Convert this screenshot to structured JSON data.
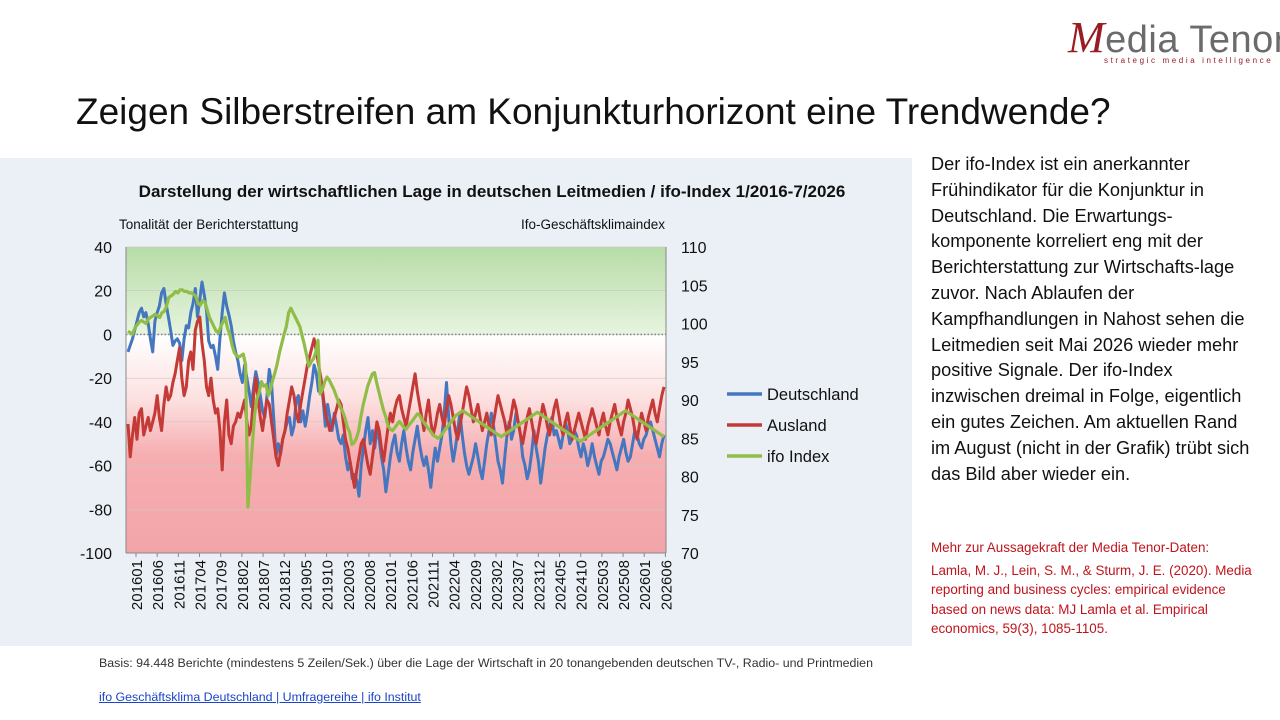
{
  "logo": {
    "brand_m": "M",
    "brand_rest": "edia Tenor",
    "tagline": "strategic media intelligence"
  },
  "title": "Zeigen Silberstreifen am Konjunkturhorizont eine Trendwende?",
  "sidebar": {
    "text": "Der ifo-Index ist ein anerkannter Frühindikator für die Konjunktur in Deutschland. Die Erwartungs-komponente korreliert eng mit der Berichterstattung zur Wirtschafts-lage zuvor. Nach Ablaufen der Kampfhandlungen in Nahost sehen die Leitmedien seit Mai 2026 wieder mehr positive Signale. Der ifo-Index inzwischen dreimal in Folge, eigentlich ein gutes Zeichen. Am aktuellen Rand im August (nicht in der Grafik) trübt sich das Bild aber wieder ein.",
    "ref_title": "Mehr zur Aussagekraft der Media Tenor-Daten:",
    "ref_body": "Lamla, M. J., Lein, S. M., & Sturm, J. E. (2020). Media reporting and business cycles: empirical evidence based on news data: MJ Lamla et al. Empirical economics, 59(3), 1085-1105."
  },
  "footer": {
    "basis": "Basis: 94.448 Berichte (mindestens 5 Zeilen/Sek.) über die Lage der Wirtschaft in 20 tonangebenden deutschen TV-, Radio- und Printmedien",
    "link": "ifo Geschäftsklima Deutschland | Umfragereihe | ifo Institut"
  },
  "chart_data": {
    "type": "line",
    "title": "Darstellung der wirtschaftlichen Lage in deutschen Leitmedien / ifo-Index 1/2016-7/2026",
    "ylabel_left": "Tonalität der Berichterstattung",
    "ylabel_right": "Ifo-Geschäftsklimaindex",
    "y_left": {
      "min": -100,
      "max": 40,
      "ticks": [
        40,
        20,
        0,
        -20,
        -40,
        -60,
        -80,
        -100
      ]
    },
    "y_right": {
      "min": 70,
      "max": 110,
      "ticks": [
        110,
        105,
        100,
        95,
        90,
        85,
        80,
        75,
        70
      ]
    },
    "x_tick_labels": [
      "201601",
      "201606",
      "201611",
      "201704",
      "201709",
      "201802",
      "201807",
      "201812",
      "201905",
      "201910",
      "202003",
      "202008",
      "202101",
      "202106",
      "202111",
      "202204",
      "202209",
      "202302",
      "202307",
      "202312",
      "202405",
      "202410",
      "202503",
      "202508",
      "202601",
      "202606"
    ],
    "legend_position": "right",
    "background_bands": "green above 0, white to red below 0",
    "colors": {
      "Deutschland": "#4477bf",
      "Ausland": "#c43a36",
      "ifo Index": "#90bd47"
    },
    "series": [
      {
        "name": "Deutschland",
        "axis": "left",
        "values": [
          -8,
          -5,
          -2,
          2,
          6,
          10,
          12,
          8,
          10,
          5,
          -2,
          -8,
          6,
          10,
          13,
          19,
          21,
          14,
          8,
          2,
          -5,
          -3,
          -2,
          -4,
          -12,
          -2,
          4,
          3,
          10,
          14,
          21,
          8,
          16,
          24,
          18,
          11,
          -3,
          -6,
          -5,
          -10,
          -16,
          -2,
          10,
          19,
          13,
          9,
          4,
          -3,
          -8,
          -12,
          -18,
          -22,
          -14,
          -20,
          -26,
          -33,
          -24,
          -17,
          -22,
          -28,
          -35,
          -38,
          -28,
          -16,
          -22,
          -39,
          -56,
          -50,
          -55,
          -48,
          -44,
          -40,
          -38,
          -46,
          -42,
          -30,
          -28,
          -40,
          -35,
          -42,
          -36,
          -28,
          -22,
          -14,
          -18,
          -26,
          -20,
          -30,
          -42,
          -32,
          -38,
          -44,
          -36,
          -42,
          -48,
          -50,
          -46,
          -56,
          -62,
          -58,
          -66,
          -64,
          -67,
          -74,
          -60,
          -52,
          -44,
          -38,
          -50,
          -44,
          -52,
          -44,
          -48,
          -56,
          -62,
          -72,
          -64,
          -56,
          -50,
          -46,
          -54,
          -58,
          -50,
          -44,
          -52,
          -58,
          -62,
          -54,
          -48,
          -42,
          -50,
          -56,
          -60,
          -56,
          -62,
          -70,
          -60,
          -52,
          -58,
          -52,
          -46,
          -36,
          -22,
          -38,
          -50,
          -58,
          -52,
          -44,
          -36,
          -46,
          -54,
          -60,
          -64,
          -60,
          -56,
          -50,
          -56,
          -62,
          -66,
          -58,
          -50,
          -44,
          -36,
          -42,
          -50,
          -58,
          -62,
          -68,
          -56,
          -46,
          -40,
          -48,
          -44,
          -36,
          -40,
          -46,
          -56,
          -60,
          -66,
          -62,
          -54,
          -44,
          -52,
          -58,
          -68,
          -60,
          -52,
          -46,
          -42,
          -38,
          -46,
          -44,
          -48,
          -52,
          -46,
          -40,
          -44,
          -50,
          -48,
          -44,
          -46,
          -52,
          -56,
          -50,
          -54,
          -60,
          -56,
          -50,
          -56,
          -60,
          -64,
          -58,
          -56,
          -52,
          -48,
          -50,
          -54,
          -58,
          -62,
          -56,
          -52,
          -48,
          -54,
          -58,
          -56,
          -50,
          -44,
          -46,
          -50,
          -52,
          -48,
          -46,
          -42,
          -40,
          -44,
          -48,
          -52,
          -56,
          -50,
          -46
        ]
      },
      {
        "name": "Ausland",
        "axis": "left",
        "values": [
          -41,
          -56,
          -46,
          -38,
          -48,
          -36,
          -34,
          -46,
          -42,
          -38,
          -44,
          -40,
          -36,
          -28,
          -38,
          -44,
          -32,
          -24,
          -30,
          -28,
          -22,
          -18,
          -12,
          -6,
          -20,
          -28,
          -24,
          -12,
          -8,
          -16,
          2,
          6,
          8,
          -4,
          -12,
          -24,
          -28,
          -20,
          -30,
          -36,
          -34,
          -44,
          -62,
          -40,
          -30,
          -46,
          -50,
          -42,
          -40,
          -36,
          -38,
          -34,
          -30,
          -40,
          -46,
          -42,
          -28,
          -20,
          -30,
          -38,
          -44,
          -36,
          -30,
          -32,
          -40,
          -48,
          -56,
          -60,
          -54,
          -48,
          -44,
          -36,
          -30,
          -24,
          -28,
          -36,
          -40,
          -32,
          -26,
          -20,
          -14,
          -10,
          -6,
          -2,
          -8,
          -14,
          -20,
          -28,
          -36,
          -40,
          -44,
          -42,
          -38,
          -34,
          -30,
          -32,
          -40,
          -48,
          -52,
          -58,
          -64,
          -70,
          -62,
          -56,
          -50,
          -48,
          -54,
          -60,
          -64,
          -56,
          -48,
          -40,
          -44,
          -52,
          -58,
          -50,
          -42,
          -36,
          -40,
          -34,
          -30,
          -28,
          -34,
          -38,
          -42,
          -36,
          -30,
          -24,
          -18,
          -26,
          -32,
          -38,
          -44,
          -36,
          -30,
          -40,
          -46,
          -42,
          -36,
          -32,
          -38,
          -42,
          -34,
          -28,
          -32,
          -38,
          -44,
          -48,
          -42,
          -36,
          -30,
          -24,
          -28,
          -34,
          -40,
          -36,
          -32,
          -38,
          -44,
          -40,
          -36,
          -42,
          -46,
          -40,
          -34,
          -28,
          -32,
          -36,
          -40,
          -46,
          -42,
          -36,
          -30,
          -34,
          -40,
          -46,
          -50,
          -44,
          -38,
          -34,
          -40,
          -46,
          -50,
          -44,
          -38,
          -32,
          -36,
          -42,
          -46,
          -40,
          -34,
          -30,
          -36,
          -42,
          -46,
          -40,
          -36,
          -42,
          -48,
          -44,
          -40,
          -36,
          -40,
          -44,
          -48,
          -42,
          -38,
          -34,
          -38,
          -42,
          -46,
          -40,
          -36,
          -42,
          -46,
          -40,
          -36,
          -32,
          -38,
          -42,
          -46,
          -40,
          -36,
          -30,
          -34,
          -38,
          -44,
          -48,
          -42,
          -36,
          -40,
          -44,
          -38,
          -34,
          -30,
          -36,
          -40,
          -34,
          -28,
          -24
        ]
      },
      {
        "name": "ifo Index",
        "axis": "right",
        "values": [
          99.0,
          98.8,
          98.6,
          99.4,
          99.8,
          100.2,
          100.4,
          100.2,
          100.0,
          100.6,
          100.8,
          101.0,
          101.2,
          101.0,
          100.8,
          101.4,
          101.6,
          102.2,
          103.4,
          103.6,
          103.8,
          104.2,
          104.0,
          104.4,
          104.4,
          104.2,
          104.2,
          104.0,
          104.0,
          103.8,
          103.6,
          102.6,
          102.4,
          103.0,
          102.8,
          101.8,
          100.8,
          100.2,
          99.6,
          99.0,
          98.8,
          99.6,
          100.2,
          100.8,
          99.4,
          98.6,
          97.2,
          96.2,
          95.8,
          95.6,
          95.8,
          96.0,
          94.6,
          76.0,
          80.0,
          84.2,
          88.0,
          90.2,
          91.0,
          92.4,
          91.8,
          92.0,
          90.6,
          91.4,
          92.6,
          93.6,
          94.8,
          96.2,
          97.4,
          98.6,
          99.6,
          101.4,
          102.0,
          101.4,
          100.8,
          100.2,
          99.6,
          98.4,
          97.2,
          95.8,
          94.4,
          95.0,
          95.4,
          96.2,
          97.8,
          90.8,
          91.4,
          92.4,
          93.0,
          92.6,
          92.0,
          91.4,
          90.6,
          89.8,
          89.0,
          88.4,
          87.6,
          86.4,
          85.8,
          84.2,
          84.4,
          85.0,
          86.0,
          87.8,
          89.4,
          90.6,
          91.8,
          92.6,
          93.4,
          93.6,
          92.2,
          91.0,
          89.8,
          88.6,
          87.8,
          86.6,
          86.2,
          86.0,
          86.4,
          86.8,
          87.2,
          86.8,
          86.4,
          86.2,
          86.6,
          87.0,
          87.4,
          87.8,
          88.2,
          88.0,
          87.4,
          87.0,
          86.6,
          86.2,
          85.8,
          85.4,
          85.2,
          85.0,
          85.2,
          85.6,
          86.0,
          86.4,
          86.8,
          87.2,
          87.6,
          88.0,
          88.2,
          88.4,
          88.6,
          88.4,
          88.2,
          88.0,
          87.8,
          87.6,
          87.4,
          87.2,
          87.0,
          86.8,
          86.6,
          86.4,
          86.2,
          86.0,
          85.8,
          85.6,
          85.4,
          85.2,
          85.4,
          85.6,
          85.8,
          86.0,
          86.2,
          86.4,
          86.6,
          86.8,
          87.0,
          87.2,
          87.4,
          87.6,
          87.8,
          88.0,
          88.2,
          88.4,
          88.2,
          88.0,
          87.8,
          87.6,
          87.4,
          87.2,
          87.0,
          86.8,
          86.6,
          86.4,
          86.2,
          86.0,
          85.8,
          85.6,
          85.4,
          85.2,
          85.0,
          84.8,
          84.6,
          84.8,
          85.0,
          85.2,
          85.4,
          85.6,
          85.8,
          86.0,
          86.2,
          86.4,
          86.6,
          86.8,
          87.0,
          87.2,
          87.4,
          87.6,
          87.8,
          88.0,
          88.2,
          88.4,
          88.6,
          88.4,
          88.2,
          88.0,
          87.8,
          87.6,
          87.4,
          87.2,
          87.0,
          86.8,
          86.6,
          86.4,
          86.2,
          86.0,
          85.8,
          85.6,
          85.4,
          85.2
        ]
      }
    ]
  }
}
